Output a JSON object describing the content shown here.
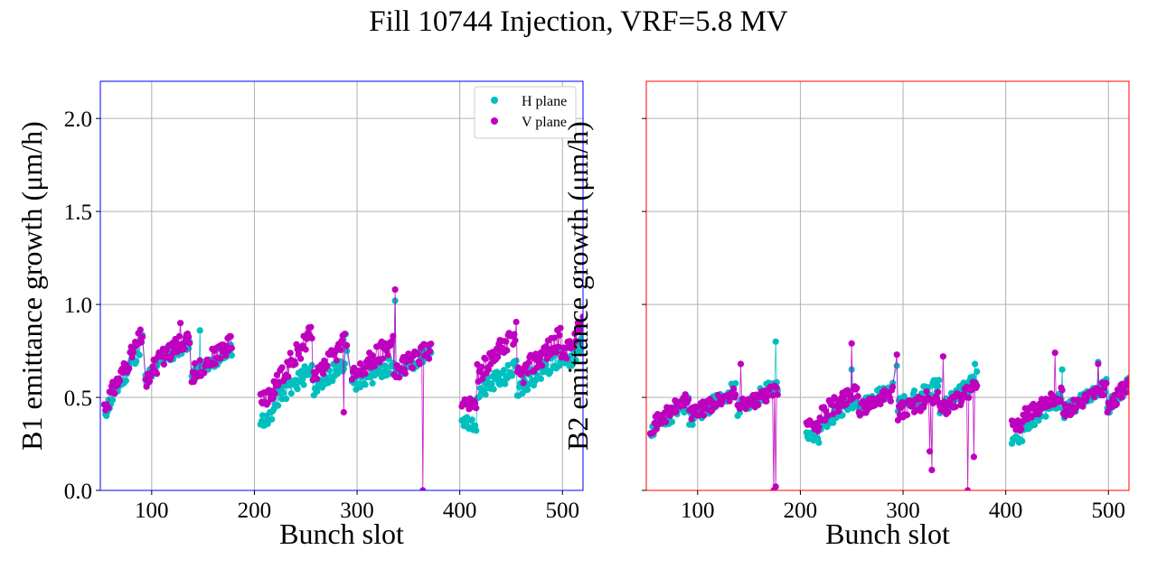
{
  "title": "Fill 10744 Injection, VRF=5.8 MV",
  "colors": {
    "h_plane": "#00bfbf",
    "v_plane": "#bf00bf",
    "b1_frame": "#0000ff",
    "b2_frame": "#ff0000",
    "grid": "#b0b0b0"
  },
  "chart_data": [
    {
      "type": "scatter",
      "ylabel": "B1 emittance growth (μm/h)",
      "xlabel": "Bunch slot",
      "xlim": [
        50,
        520
      ],
      "ylim": [
        0,
        2.2
      ],
      "xticks": [
        100,
        200,
        300,
        400,
        500
      ],
      "yticks": [
        0.0,
        0.5,
        1.0,
        1.5,
        2.0
      ],
      "ytick_labels": [
        "0.0",
        "0.5",
        "1.0",
        "1.5",
        "2.0"
      ],
      "grid": true,
      "legend": {
        "placement": "top-right",
        "entries": [
          "H plane",
          "V plane"
        ]
      },
      "series": [
        {
          "name": "H plane",
          "color": "#00bfbf",
          "groups": [
            {
              "x0": 54,
              "x1": 91,
              "y0": 0.42,
              "y1": 0.8,
              "amp": 0.05,
              "seed": 11
            },
            {
              "x0": 94,
              "x1": 114,
              "y0": 0.6,
              "y1": 0.72,
              "amp": 0.04,
              "seed": 12
            },
            {
              "x0": 115,
              "x1": 137,
              "y0": 0.72,
              "y1": 0.8,
              "amp": 0.04,
              "seed": 13
            },
            {
              "x0": 139,
              "x1": 178,
              "y0": 0.62,
              "y1": 0.76,
              "amp": 0.04,
              "seed": 14
            },
            {
              "x0": 206,
              "x1": 218,
              "y0": 0.37,
              "y1": 0.4,
              "amp": 0.03,
              "seed": 15
            },
            {
              "x0": 219,
              "x1": 256,
              "y0": 0.48,
              "y1": 0.65,
              "amp": 0.05,
              "seed": 16
            },
            {
              "x0": 257,
              "x1": 290,
              "y0": 0.55,
              "y1": 0.7,
              "amp": 0.05,
              "seed": 17
            },
            {
              "x0": 295,
              "x1": 335,
              "y0": 0.56,
              "y1": 0.68,
              "amp": 0.05,
              "seed": 18
            },
            {
              "x0": 336,
              "x1": 372,
              "y0": 0.62,
              "y1": 0.76,
              "amp": 0.04,
              "seed": 19
            },
            {
              "x0": 402,
              "x1": 416,
              "y0": 0.38,
              "y1": 0.34,
              "amp": 0.03,
              "seed": 20
            },
            {
              "x0": 417,
              "x1": 455,
              "y0": 0.52,
              "y1": 0.66,
              "amp": 0.05,
              "seed": 21
            },
            {
              "x0": 456,
              "x1": 498,
              "y0": 0.55,
              "y1": 0.72,
              "amp": 0.05,
              "seed": 22
            },
            {
              "x0": 499,
              "x1": 520,
              "y0": 0.66,
              "y1": 0.78,
              "amp": 0.05,
              "seed": 23
            }
          ],
          "outliers": [
            [
              337,
              1.02
            ],
            [
              147,
              0.86
            ],
            [
              289,
              0.84
            ]
          ]
        },
        {
          "name": "V plane",
          "color": "#bf00bf",
          "groups": [
            {
              "x0": 54,
              "x1": 91,
              "y0": 0.45,
              "y1": 0.84,
              "amp": 0.05,
              "seed": 31
            },
            {
              "x0": 94,
              "x1": 114,
              "y0": 0.6,
              "y1": 0.74,
              "amp": 0.05,
              "seed": 32
            },
            {
              "x0": 115,
              "x1": 137,
              "y0": 0.74,
              "y1": 0.82,
              "amp": 0.05,
              "seed": 33
            },
            {
              "x0": 139,
              "x1": 178,
              "y0": 0.62,
              "y1": 0.8,
              "amp": 0.05,
              "seed": 34
            },
            {
              "x0": 206,
              "x1": 218,
              "y0": 0.48,
              "y1": 0.52,
              "amp": 0.04,
              "seed": 35
            },
            {
              "x0": 219,
              "x1": 256,
              "y0": 0.55,
              "y1": 0.85,
              "amp": 0.06,
              "seed": 36
            },
            {
              "x0": 257,
              "x1": 290,
              "y0": 0.58,
              "y1": 0.82,
              "amp": 0.05,
              "seed": 37
            },
            {
              "x0": 295,
              "x1": 335,
              "y0": 0.6,
              "y1": 0.8,
              "amp": 0.06,
              "seed": 38
            },
            {
              "x0": 336,
              "x1": 372,
              "y0": 0.64,
              "y1": 0.76,
              "amp": 0.05,
              "seed": 39
            },
            {
              "x0": 402,
              "x1": 416,
              "y0": 0.48,
              "y1": 0.46,
              "amp": 0.04,
              "seed": 40
            },
            {
              "x0": 417,
              "x1": 455,
              "y0": 0.62,
              "y1": 0.86,
              "amp": 0.06,
              "seed": 41
            },
            {
              "x0": 456,
              "x1": 498,
              "y0": 0.6,
              "y1": 0.82,
              "amp": 0.06,
              "seed": 42
            },
            {
              "x0": 499,
              "x1": 520,
              "y0": 0.7,
              "y1": 0.9,
              "amp": 0.05,
              "seed": 43
            }
          ],
          "outliers": [
            [
              337,
              1.08
            ],
            [
              364,
              0.0
            ],
            [
              128,
              0.9
            ],
            [
              60,
              0.53
            ],
            [
              287,
              0.42
            ]
          ]
        }
      ]
    },
    {
      "type": "scatter",
      "ylabel": "B2 emittance growth (μm/h)",
      "xlabel": "Bunch slot",
      "xlim": [
        50,
        520
      ],
      "ylim": [
        0,
        2.2
      ],
      "xticks": [
        100,
        200,
        300,
        400,
        500
      ],
      "yticks": [
        0.0,
        0.5,
        1.0,
        1.5,
        2.0
      ],
      "ytick_labels": [
        "",
        "",
        "",
        "",
        ""
      ],
      "grid": true,
      "series": [
        {
          "name": "H plane",
          "color": "#00bfbf",
          "groups": [
            {
              "x0": 54,
              "x1": 91,
              "y0": 0.32,
              "y1": 0.47,
              "amp": 0.04,
              "seed": 51
            },
            {
              "x0": 92,
              "x1": 137,
              "y0": 0.38,
              "y1": 0.55,
              "amp": 0.04,
              "seed": 52
            },
            {
              "x0": 139,
              "x1": 178,
              "y0": 0.44,
              "y1": 0.57,
              "amp": 0.04,
              "seed": 53
            },
            {
              "x0": 206,
              "x1": 218,
              "y0": 0.29,
              "y1": 0.27,
              "amp": 0.03,
              "seed": 54
            },
            {
              "x0": 219,
              "x1": 256,
              "y0": 0.34,
              "y1": 0.5,
              "amp": 0.04,
              "seed": 55
            },
            {
              "x0": 257,
              "x1": 290,
              "y0": 0.44,
              "y1": 0.55,
              "amp": 0.04,
              "seed": 56
            },
            {
              "x0": 295,
              "x1": 335,
              "y0": 0.44,
              "y1": 0.56,
              "amp": 0.05,
              "seed": 57
            },
            {
              "x0": 336,
              "x1": 372,
              "y0": 0.44,
              "y1": 0.6,
              "amp": 0.04,
              "seed": 58
            },
            {
              "x0": 406,
              "x1": 416,
              "y0": 0.28,
              "y1": 0.26,
              "amp": 0.03,
              "seed": 59
            },
            {
              "x0": 417,
              "x1": 455,
              "y0": 0.34,
              "y1": 0.5,
              "amp": 0.04,
              "seed": 60
            },
            {
              "x0": 456,
              "x1": 498,
              "y0": 0.42,
              "y1": 0.56,
              "amp": 0.04,
              "seed": 61
            },
            {
              "x0": 499,
              "x1": 520,
              "y0": 0.44,
              "y1": 0.58,
              "amp": 0.04,
              "seed": 62
            }
          ],
          "outliers": [
            [
              176,
              0.8
            ],
            [
              250,
              0.65
            ],
            [
              294,
              0.67
            ],
            [
              370,
              0.68
            ],
            [
              455,
              0.65
            ],
            [
              490,
              0.69
            ]
          ]
        },
        {
          "name": "V plane",
          "color": "#bf00bf",
          "groups": [
            {
              "x0": 54,
              "x1": 91,
              "y0": 0.34,
              "y1": 0.5,
              "amp": 0.04,
              "seed": 71
            },
            {
              "x0": 92,
              "x1": 137,
              "y0": 0.4,
              "y1": 0.53,
              "amp": 0.04,
              "seed": 72
            },
            {
              "x0": 139,
              "x1": 178,
              "y0": 0.44,
              "y1": 0.54,
              "amp": 0.04,
              "seed": 73
            },
            {
              "x0": 206,
              "x1": 218,
              "y0": 0.36,
              "y1": 0.34,
              "amp": 0.03,
              "seed": 74
            },
            {
              "x0": 219,
              "x1": 256,
              "y0": 0.4,
              "y1": 0.55,
              "amp": 0.05,
              "seed": 75
            },
            {
              "x0": 257,
              "x1": 290,
              "y0": 0.44,
              "y1": 0.52,
              "amp": 0.04,
              "seed": 76
            },
            {
              "x0": 295,
              "x1": 335,
              "y0": 0.42,
              "y1": 0.52,
              "amp": 0.05,
              "seed": 77
            },
            {
              "x0": 336,
              "x1": 372,
              "y0": 0.42,
              "y1": 0.56,
              "amp": 0.04,
              "seed": 78
            },
            {
              "x0": 406,
              "x1": 416,
              "y0": 0.36,
              "y1": 0.34,
              "amp": 0.03,
              "seed": 79
            },
            {
              "x0": 417,
              "x1": 455,
              "y0": 0.4,
              "y1": 0.52,
              "amp": 0.04,
              "seed": 80
            },
            {
              "x0": 456,
              "x1": 498,
              "y0": 0.42,
              "y1": 0.56,
              "amp": 0.04,
              "seed": 81
            },
            {
              "x0": 499,
              "x1": 520,
              "y0": 0.44,
              "y1": 0.58,
              "amp": 0.04,
              "seed": 82
            }
          ],
          "outliers": [
            [
              176,
              0.02
            ],
            [
              174,
              0.0
            ],
            [
              250,
              0.79
            ],
            [
              294,
              0.73
            ],
            [
              328,
              0.11
            ],
            [
              326,
              0.21
            ],
            [
              339,
              0.72
            ],
            [
              363,
              0.0
            ],
            [
              369,
              0.18
            ],
            [
              448,
              0.74
            ],
            [
              490,
              0.68
            ],
            [
              142,
              0.68
            ]
          ]
        }
      ]
    }
  ]
}
